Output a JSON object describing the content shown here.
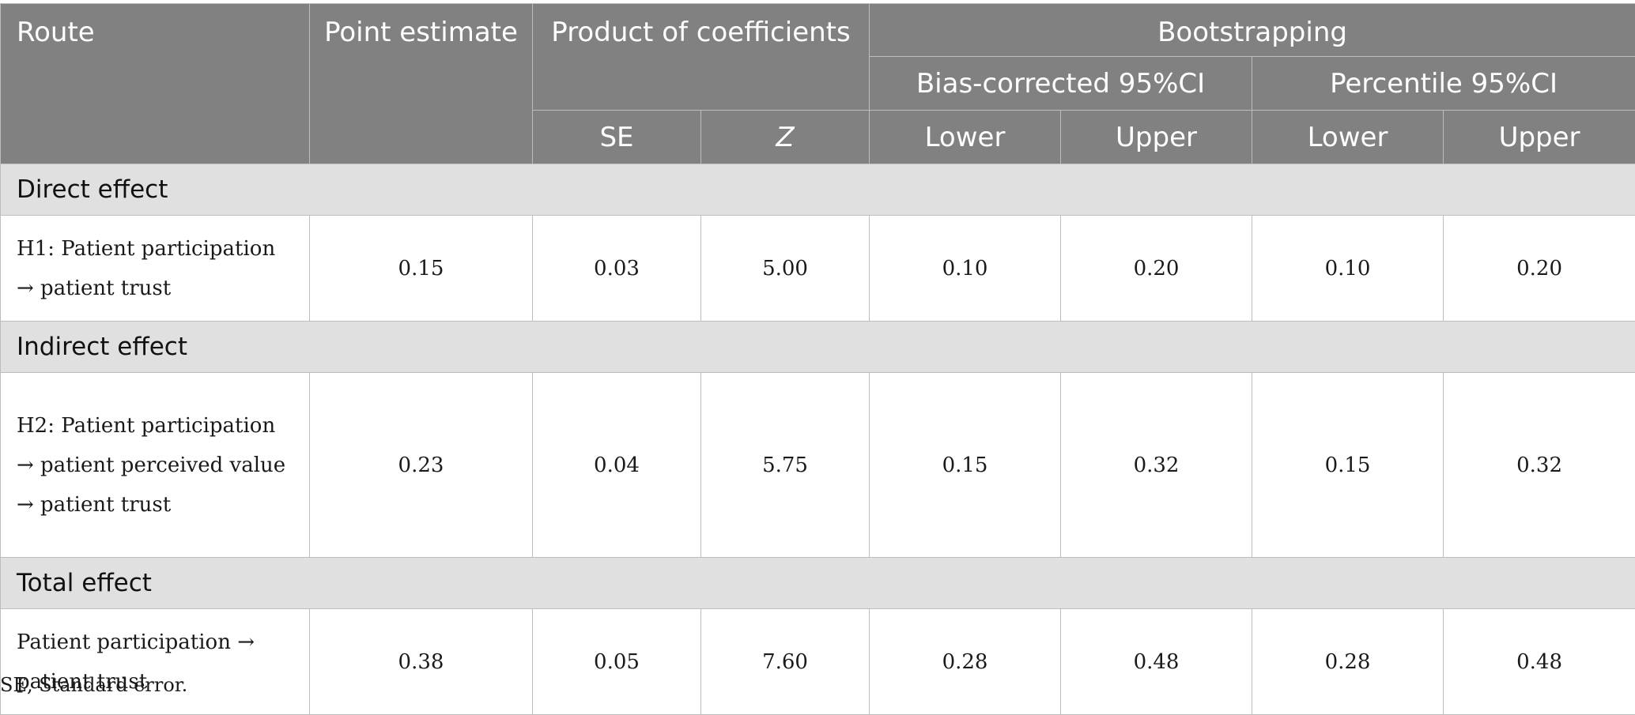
{
  "header": {
    "route": "Route",
    "point_estimate": "Point estimate",
    "product_of_coefficients": "Product of coefficients",
    "bootstrapping": "Bootstrapping",
    "bias_corrected": "Bias-corrected 95%CI",
    "percentile": "Percentile 95%CI",
    "se": "SE",
    "z": "Z",
    "lower": "Lower",
    "upper": "Upper"
  },
  "sections": [
    {
      "title": "Direct effect",
      "rows": [
        {
          "route": "H1: Patient participation → patient trust",
          "point": "0.15",
          "se": "0.03",
          "z": "5.00",
          "bc_lower": "0.10",
          "bc_upper": "0.20",
          "pc_lower": "0.10",
          "pc_upper": "0.20"
        }
      ]
    },
    {
      "title": "Indirect effect",
      "rows": [
        {
          "route": "H2: Patient participation → patient perceived value → patient trust",
          "point": "0.23",
          "se": "0.04",
          "z": "5.75",
          "bc_lower": "0.15",
          "bc_upper": "0.32",
          "pc_lower": "0.15",
          "pc_upper": "0.32"
        }
      ]
    },
    {
      "title": "Total effect",
      "rows": [
        {
          "route": "Patient participation → patient trust",
          "point": "0.38",
          "se": "0.05",
          "z": "7.60",
          "bc_lower": "0.28",
          "bc_upper": "0.48",
          "pc_lower": "0.28",
          "pc_upper": "0.48"
        }
      ]
    }
  ],
  "footnote": "SE, Standard error."
}
